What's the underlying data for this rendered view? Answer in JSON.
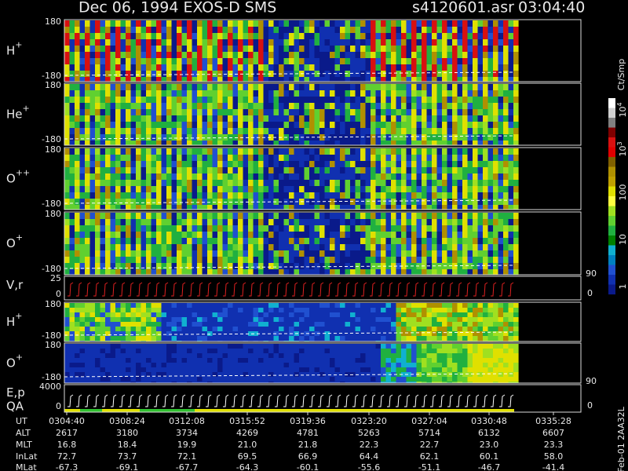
{
  "header": {
    "title": "Dec 06, 1994   EXOS-D SMS",
    "file": "s4120601.asr",
    "time": "03:04:40"
  },
  "panels": [
    {
      "label": "H",
      "charge": "+",
      "top": "180",
      "bottom": "-180"
    },
    {
      "label": "He",
      "charge": "+",
      "top": "180",
      "bottom": "-180"
    },
    {
      "label": "O",
      "charge": "++",
      "top": "180",
      "bottom": "-180"
    },
    {
      "label": "O",
      "charge": "+",
      "top": "180",
      "bottom": "-180"
    },
    {
      "label": "V,r",
      "top": "25",
      "bottom": "0",
      "right_top": "90",
      "right_bottom": "0"
    },
    {
      "label": "H",
      "charge": "+",
      "top": "180",
      "bottom": "-180"
    },
    {
      "label": "O",
      "charge": "+",
      "top": "180",
      "bottom": "-180"
    },
    {
      "label": "E,p",
      "label2": "QA",
      "top": "4000",
      "bottom": "0",
      "right_top": "90",
      "right_bottom": "0"
    }
  ],
  "colorbar": {
    "unit": "Ct/Smp",
    "labels": [
      {
        "base": "10",
        "exp": "4"
      },
      {
        "base": "10",
        "exp": "3"
      },
      {
        "base": "100"
      },
      {
        "base": "10"
      },
      {
        "base": "1"
      }
    ]
  },
  "table": {
    "rows": [
      {
        "label": "UT",
        "values": [
          "0304:40",
          "0308:24",
          "0312:08",
          "0315:52",
          "0319:36",
          "0323:20",
          "0327:04",
          "0330:48",
          "0335:28"
        ]
      },
      {
        "label": "ALT",
        "values": [
          "2617",
          "3180",
          "3734",
          "4269",
          "4781",
          "5263",
          "5714",
          "6132",
          "6607"
        ]
      },
      {
        "label": "MLT",
        "values": [
          "16.8",
          "18.4",
          "19.9",
          "21.0",
          "21.8",
          "22.3",
          "22.7",
          "23.0",
          "23.3"
        ]
      },
      {
        "label": "InLat",
        "values": [
          "72.7",
          "73.7",
          "72.1",
          "69.5",
          "66.9",
          "64.4",
          "62.1",
          "60.1",
          "58.0"
        ]
      },
      {
        "label": "MLat",
        "values": [
          "-67.3",
          "-69.1",
          "-67.7",
          "-64.3",
          "-60.1",
          "-55.6",
          "-51.1",
          "-46.7",
          "-41.4"
        ]
      }
    ]
  },
  "footer": "Feb-01 2AA32L"
}
